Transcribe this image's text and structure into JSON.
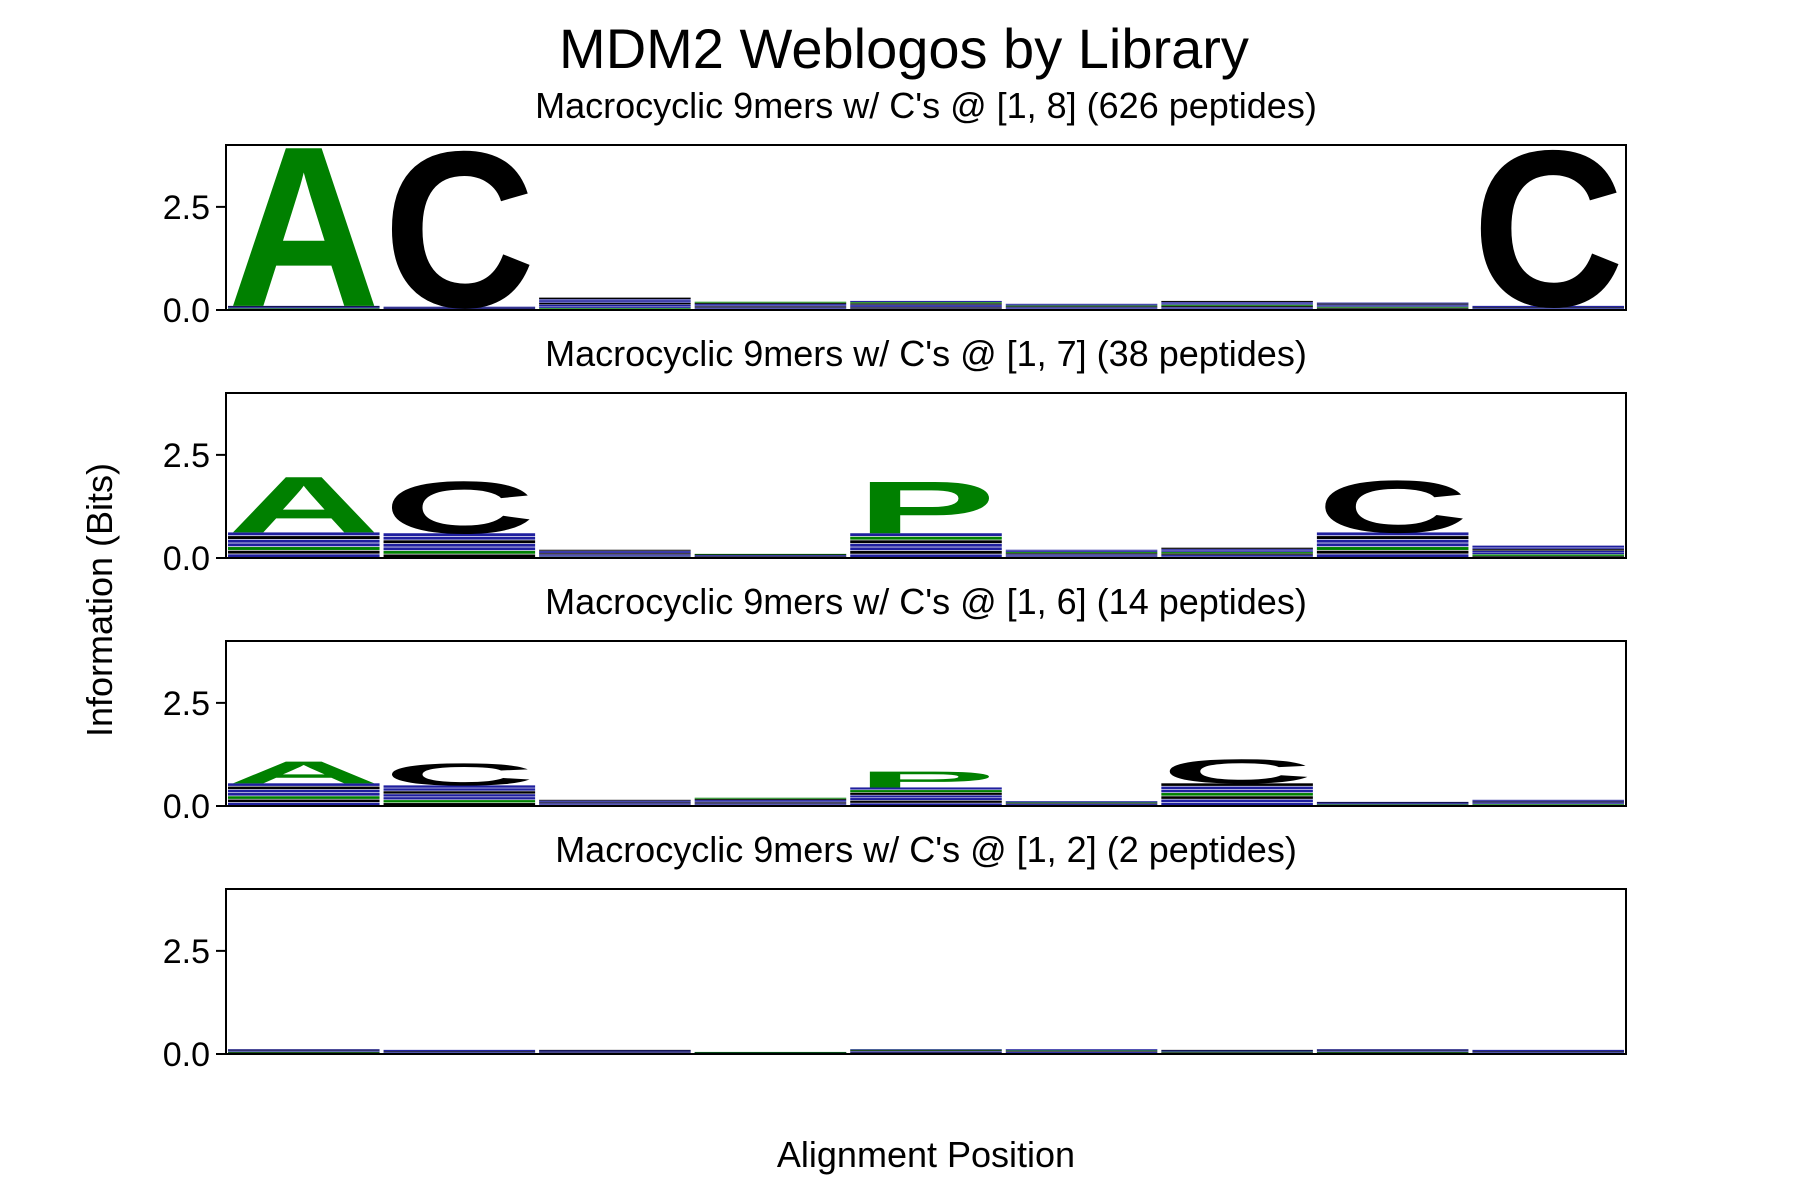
{
  "chart_data": {
    "type": "logo",
    "title": "MDM2 Weblogos by Library",
    "xlabel": "Alignment Position",
    "ylabel": "Information (Bits)",
    "ylim": [
      0,
      4
    ],
    "yticks": [
      "0.0",
      "2.5"
    ],
    "ytick_values": [
      0,
      2.5
    ],
    "positions": [
      1,
      2,
      3,
      4,
      5,
      6,
      7,
      8,
      9
    ],
    "colors": {
      "green": "#008000",
      "black": "#000000",
      "blue": "#1f1f9e"
    },
    "panels": [
      {
        "title": "Macrocyclic 9mers w/ C's @ [1, 8] (626 peptides)",
        "background_bits": [
          0.1,
          0.08,
          0.3,
          0.2,
          0.22,
          0.15,
          0.22,
          0.18,
          0.1
        ],
        "dominant": [
          {
            "position": 1,
            "letter": "A",
            "bits": 4.0,
            "color": "green"
          },
          {
            "position": 2,
            "letter": "C",
            "bits": 3.9,
            "color": "black"
          },
          {
            "position": 9,
            "letter": "C",
            "bits": 3.9,
            "color": "black"
          }
        ]
      },
      {
        "title": "Macrocyclic 9mers w/ C's @ [1, 7] (38 peptides)",
        "background_bits": [
          0.62,
          0.6,
          0.2,
          0.1,
          0.6,
          0.2,
          0.25,
          0.62,
          0.3
        ],
        "dominant": [
          {
            "position": 1,
            "letter": "A",
            "bits": 1.4,
            "color": "green"
          },
          {
            "position": 2,
            "letter": "C",
            "bits": 1.3,
            "color": "black"
          },
          {
            "position": 5,
            "letter": "P",
            "bits": 1.3,
            "color": "green"
          },
          {
            "position": 8,
            "letter": "C",
            "bits": 1.3,
            "color": "black"
          }
        ]
      },
      {
        "title": "Macrocyclic 9mers w/ C's @ [1, 6] (14 peptides)",
        "background_bits": [
          0.55,
          0.5,
          0.15,
          0.2,
          0.45,
          0.12,
          0.55,
          0.1,
          0.15
        ],
        "dominant": [
          {
            "position": 1,
            "letter": "A",
            "bits": 0.55,
            "color": "green"
          },
          {
            "position": 2,
            "letter": "C",
            "bits": 0.55,
            "color": "black"
          },
          {
            "position": 5,
            "letter": "P",
            "bits": 0.4,
            "color": "green"
          },
          {
            "position": 7,
            "letter": "C",
            "bits": 0.6,
            "color": "black"
          }
        ]
      },
      {
        "title": "Macrocyclic 9mers w/ C's @ [1, 2] (2 peptides)",
        "background_bits": [
          0.12,
          0.1,
          0.1,
          0.05,
          0.12,
          0.12,
          0.1,
          0.12,
          0.1
        ],
        "dominant": []
      }
    ]
  }
}
